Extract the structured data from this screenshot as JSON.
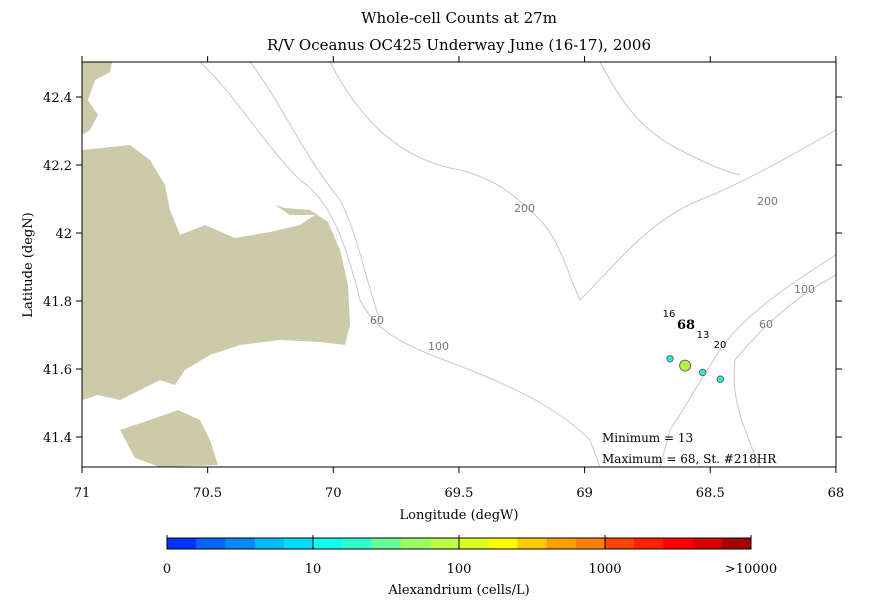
{
  "chart_data": {
    "type": "scatter",
    "title": "Whole-cell Counts at 27m",
    "subtitle": "R/V Oceanus OC425 Underway June (16-17), 2006",
    "xlabel": "Longitude (degW)",
    "ylabel": "Latitude (degN)",
    "xlim": [
      71,
      68
    ],
    "ylim": [
      41.3,
      42.5
    ],
    "xticks": [
      "71",
      "70.5",
      "70",
      "69.5",
      "69",
      "68.5",
      "68"
    ],
    "yticks": [
      "42.4",
      "42.2",
      "42",
      "41.8",
      "41.6",
      "41.4"
    ],
    "contour_labels": [
      "200",
      "200",
      "100",
      "60",
      "100",
      "60"
    ],
    "points": [
      {
        "lon": 68.66,
        "lat": 41.63,
        "value": 16,
        "label": "16",
        "color": "#33e6d0"
      },
      {
        "lon": 68.6,
        "lat": 41.61,
        "value": 68,
        "label": "68",
        "color": "#b5f04a"
      },
      {
        "lon": 68.53,
        "lat": 41.59,
        "value": 13,
        "label": "13",
        "color": "#33e6d0"
      },
      {
        "lon": 68.46,
        "lat": 41.57,
        "value": 20,
        "label": "20",
        "color": "#33e6d0"
      }
    ],
    "max_label_color": "#ff0000",
    "annotations": {
      "minimum": "Minimum = 13",
      "maximum": "Maximum = 68, St. #218HR"
    },
    "colorbar": {
      "label": "Alexandrium (cells/L)",
      "ticks": [
        "0",
        "10",
        "100",
        "1000",
        ">10000"
      ],
      "colors": [
        "#0033ff",
        "#0066ff",
        "#0088ff",
        "#00bbff",
        "#00ddff",
        "#11ffee",
        "#33ffcc",
        "#66ff99",
        "#99ff66",
        "#bbff44",
        "#ddff22",
        "#ffff00",
        "#ffcc00",
        "#ffa000",
        "#ff8000",
        "#ff4400",
        "#ff2200",
        "#ff0000",
        "#dd0000",
        "#aa0000"
      ]
    }
  }
}
